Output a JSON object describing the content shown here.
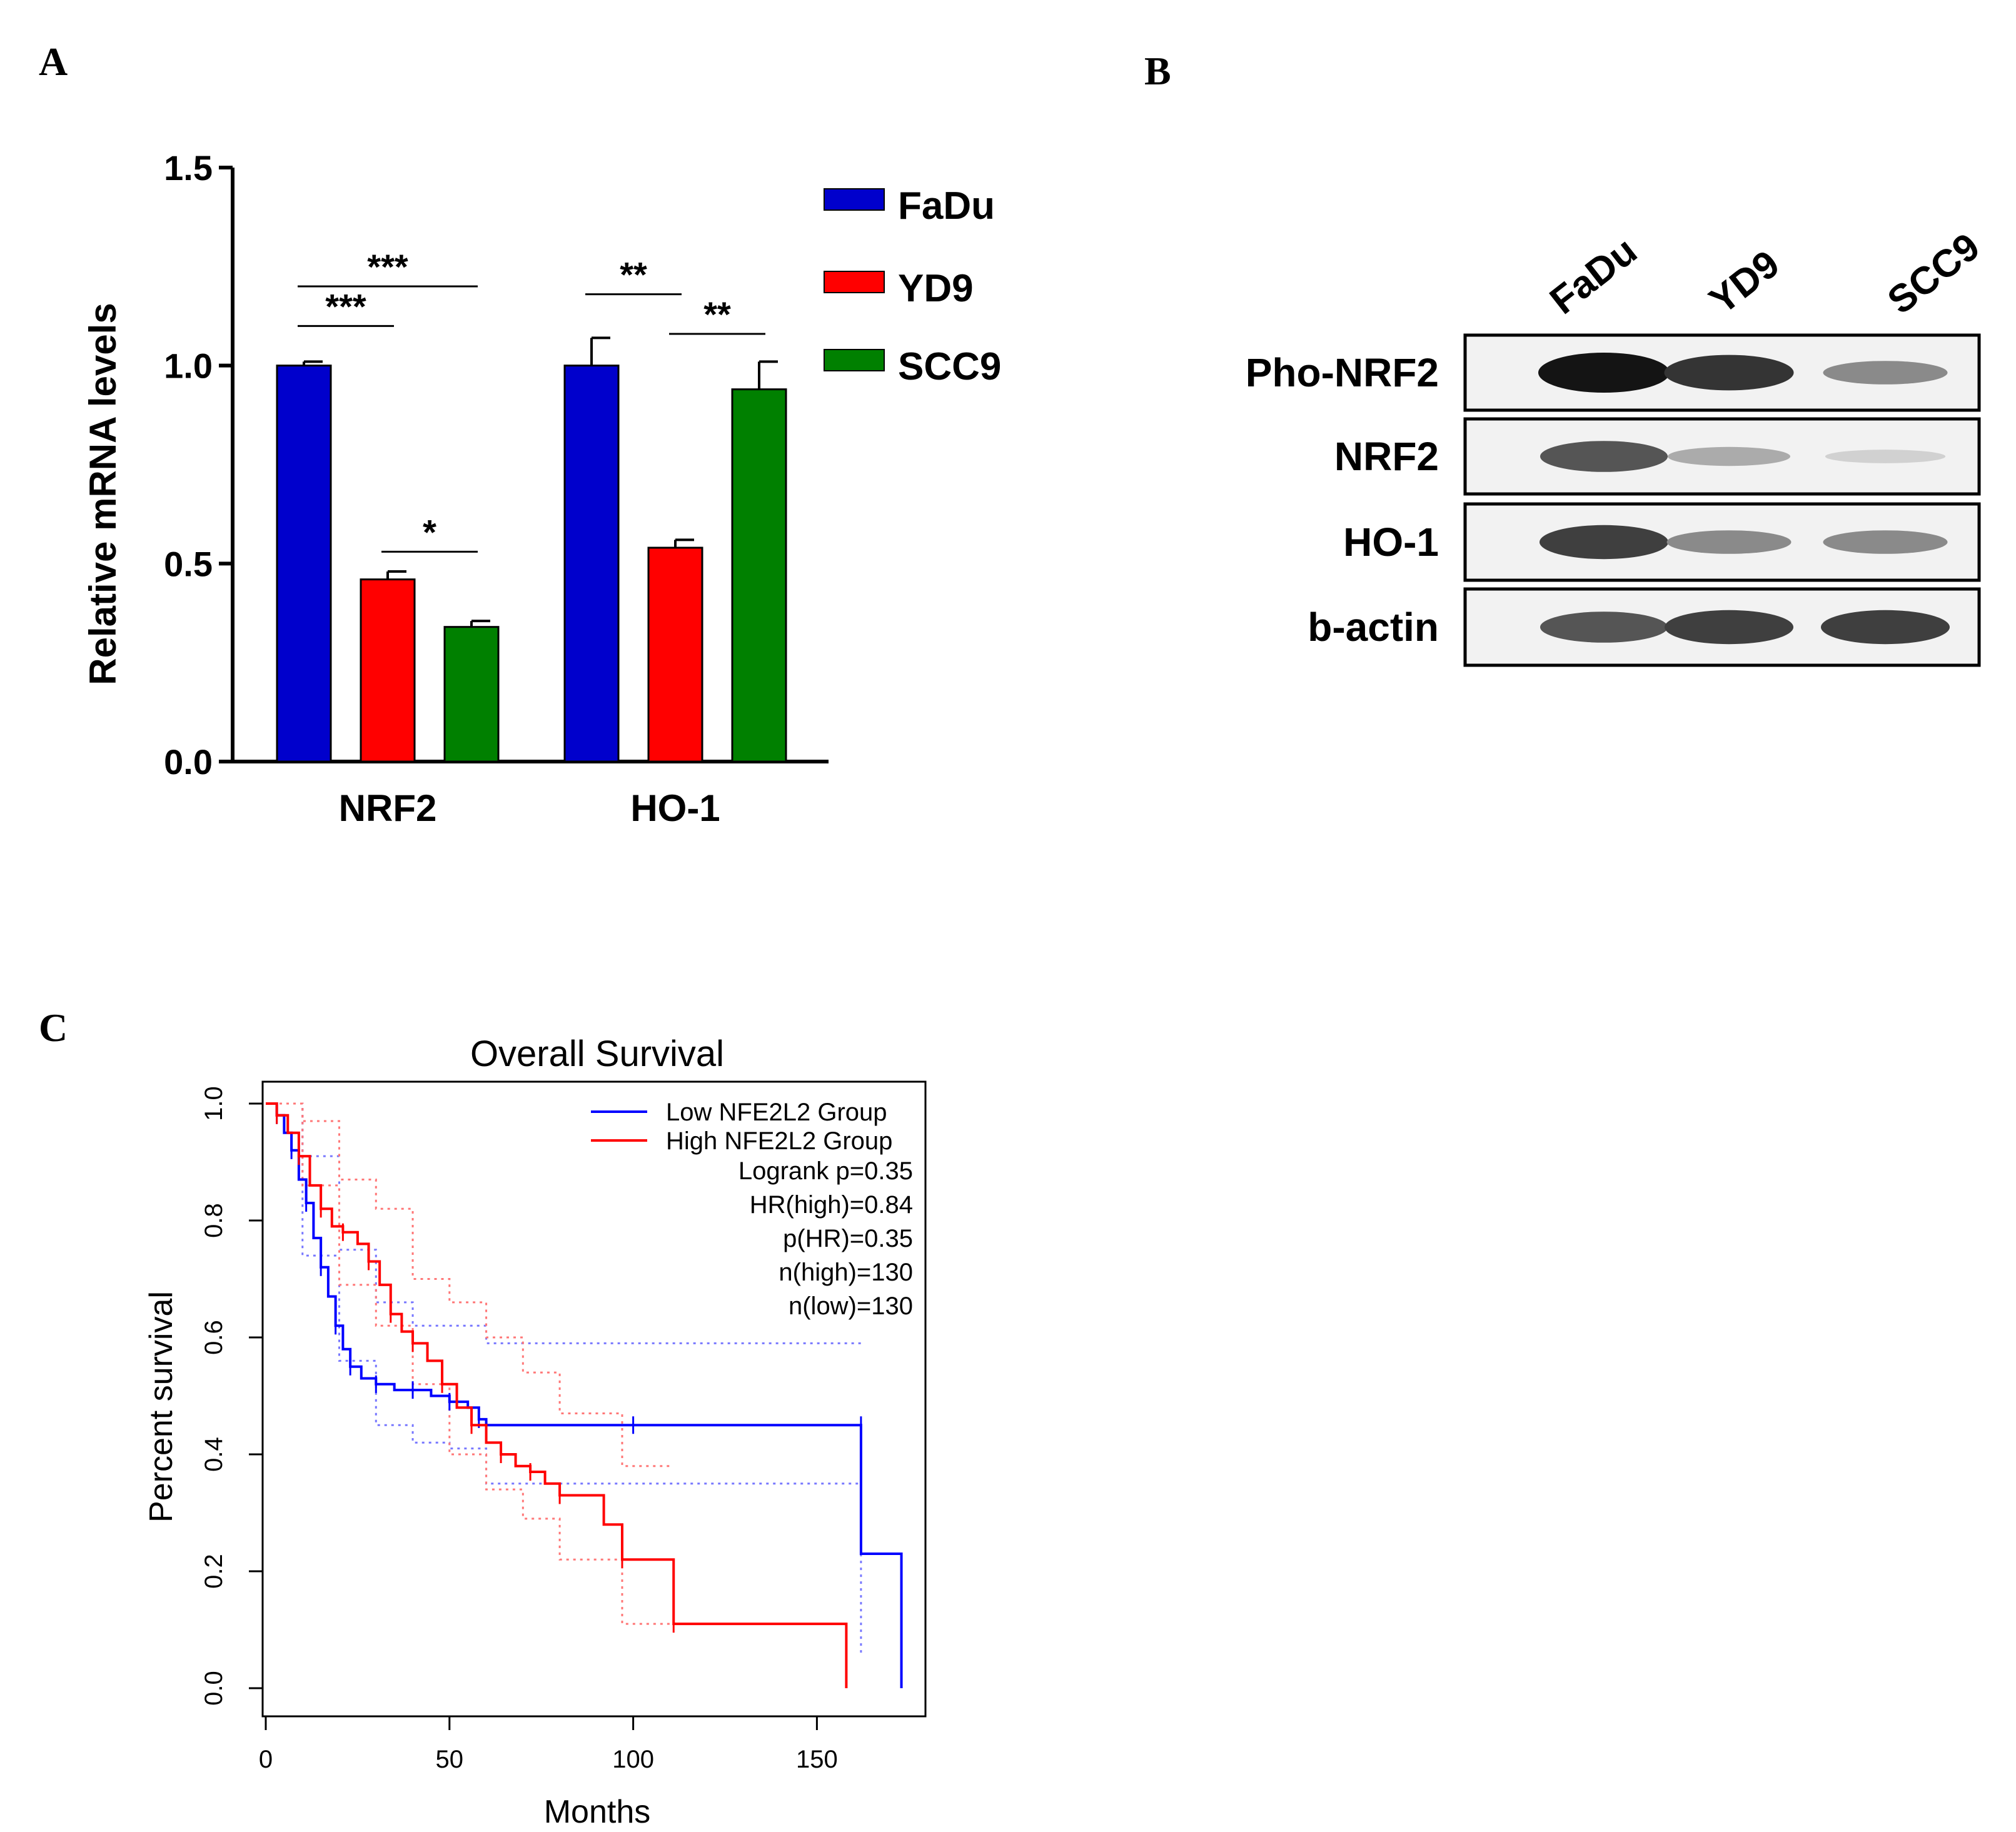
{
  "panels": {
    "a": "A",
    "b": "B",
    "c": "C"
  },
  "chart_data": [
    {
      "panel": "A",
      "type": "bar",
      "ylabel": "Relative mRNA levels",
      "xlabel": "",
      "ylim": [
        0,
        1.5
      ],
      "yticks": [
        "0.0",
        "0.5",
        "1.0",
        "1.5"
      ],
      "categories": [
        "NRF2",
        "HO-1"
      ],
      "series": [
        {
          "name": "FaDu",
          "color": "#0000cc",
          "values": [
            1.0,
            1.0
          ],
          "errors": [
            0.01,
            0.07
          ]
        },
        {
          "name": "YD9",
          "color": "#ff0000",
          "values": [
            0.46,
            0.54
          ],
          "errors": [
            0.02,
            0.02
          ]
        },
        {
          "name": "SCC9",
          "color": "#008000",
          "values": [
            0.34,
            0.94
          ],
          "errors": [
            0.015,
            0.07
          ]
        }
      ],
      "significance": [
        {
          "category": 0,
          "from": 0,
          "to": 2,
          "label": "***",
          "y": 1.2
        },
        {
          "category": 0,
          "from": 0,
          "to": 1,
          "label": "***",
          "y": 1.1
        },
        {
          "category": 0,
          "from": 1,
          "to": 2,
          "label": "*",
          "y": 0.53
        },
        {
          "category": 1,
          "from": 0,
          "to": 1,
          "label": "**",
          "y": 1.18
        },
        {
          "category": 1,
          "from": 1,
          "to": 2,
          "label": "**",
          "y": 1.08
        }
      ],
      "legend": "top-right"
    },
    {
      "panel": "B",
      "type": "table",
      "lanes": [
        "FaDu",
        "YD9",
        "SCC9"
      ],
      "rows": [
        {
          "label": "Pho-NRF2",
          "intensity": [
            1.0,
            0.85,
            0.45
          ]
        },
        {
          "label": "NRF2",
          "intensity": [
            0.7,
            0.3,
            0.12
          ]
        },
        {
          "label": "HO-1",
          "intensity": [
            0.8,
            0.45,
            0.45
          ]
        },
        {
          "label": "b-actin",
          "intensity": [
            0.7,
            0.8,
            0.8
          ]
        }
      ]
    },
    {
      "panel": "C",
      "type": "line",
      "title": "Overall Survival",
      "xlabel": "Months",
      "ylabel": "Percent survival",
      "xlim": [
        0,
        180
      ],
      "ylim": [
        0,
        1
      ],
      "xticks": [
        "0",
        "50",
        "100",
        "150"
      ],
      "yticks": [
        "0.0",
        "0.2",
        "0.4",
        "0.6",
        "0.8",
        "1.0"
      ],
      "legend": "top-right",
      "series": [
        {
          "name": "Low NFE2L2 Group",
          "color": "#0000ff",
          "x": [
            0,
            3,
            5,
            7,
            9,
            11,
            13,
            15,
            17,
            19,
            21,
            23,
            26,
            30,
            35,
            40,
            45,
            50,
            55,
            58,
            60,
            100,
            143,
            162,
            162,
            173,
            173
          ],
          "y": [
            1.0,
            0.98,
            0.95,
            0.92,
            0.87,
            0.83,
            0.77,
            0.72,
            0.67,
            0.62,
            0.58,
            0.55,
            0.53,
            0.52,
            0.51,
            0.51,
            0.5,
            0.49,
            0.48,
            0.46,
            0.45,
            0.45,
            0.45,
            0.45,
            0.23,
            0.23,
            0.0
          ]
        },
        {
          "name": "High NFE2L2 Group",
          "color": "#ff0000",
          "x": [
            0,
            3,
            6,
            9,
            12,
            15,
            18,
            21,
            25,
            28,
            31,
            34,
            37,
            40,
            44,
            48,
            52,
            56,
            60,
            64,
            68,
            72,
            76,
            80,
            92,
            97,
            111,
            111,
            158,
            158
          ],
          "y": [
            1.0,
            0.98,
            0.95,
            0.91,
            0.86,
            0.82,
            0.79,
            0.78,
            0.76,
            0.73,
            0.69,
            0.64,
            0.61,
            0.59,
            0.56,
            0.52,
            0.48,
            0.45,
            0.42,
            0.4,
            0.38,
            0.37,
            0.35,
            0.33,
            0.28,
            0.22,
            0.22,
            0.11,
            0.11,
            0.0
          ]
        }
      ],
      "ci_bands": [
        {
          "color": "#7777ff",
          "upper": {
            "x": [
              0,
              10,
              20,
              30,
              40,
              50,
              60,
              100,
              162,
              162
            ],
            "y": [
              1.0,
              0.91,
              0.75,
              0.66,
              0.62,
              0.62,
              0.59,
              0.59,
              0.59,
              0.59
            ]
          },
          "lower": {
            "x": [
              0,
              10,
              20,
              30,
              40,
              50,
              60,
              100,
              162,
              162
            ],
            "y": [
              1.0,
              0.74,
              0.56,
              0.45,
              0.42,
              0.41,
              0.35,
              0.35,
              0.35,
              0.06
            ]
          }
        },
        {
          "color": "#ff7777",
          "upper": {
            "x": [
              0,
              10,
              20,
              30,
              40,
              50,
              60,
              70,
              80,
              97,
              111
            ],
            "y": [
              1.0,
              0.97,
              0.87,
              0.82,
              0.7,
              0.66,
              0.6,
              0.54,
              0.47,
              0.38,
              0.38
            ]
          },
          "lower": {
            "x": [
              0,
              10,
              20,
              30,
              40,
              50,
              60,
              70,
              80,
              97,
              111
            ],
            "y": [
              1.0,
              0.86,
              0.69,
              0.62,
              0.52,
              0.4,
              0.34,
              0.29,
              0.22,
              0.11,
              0.11
            ]
          }
        }
      ],
      "annotations": [
        "Logrank p=0.35",
        "HR(high)=0.84",
        "p(HR)=0.35",
        "n(high)=130",
        "n(low)=130"
      ]
    }
  ]
}
